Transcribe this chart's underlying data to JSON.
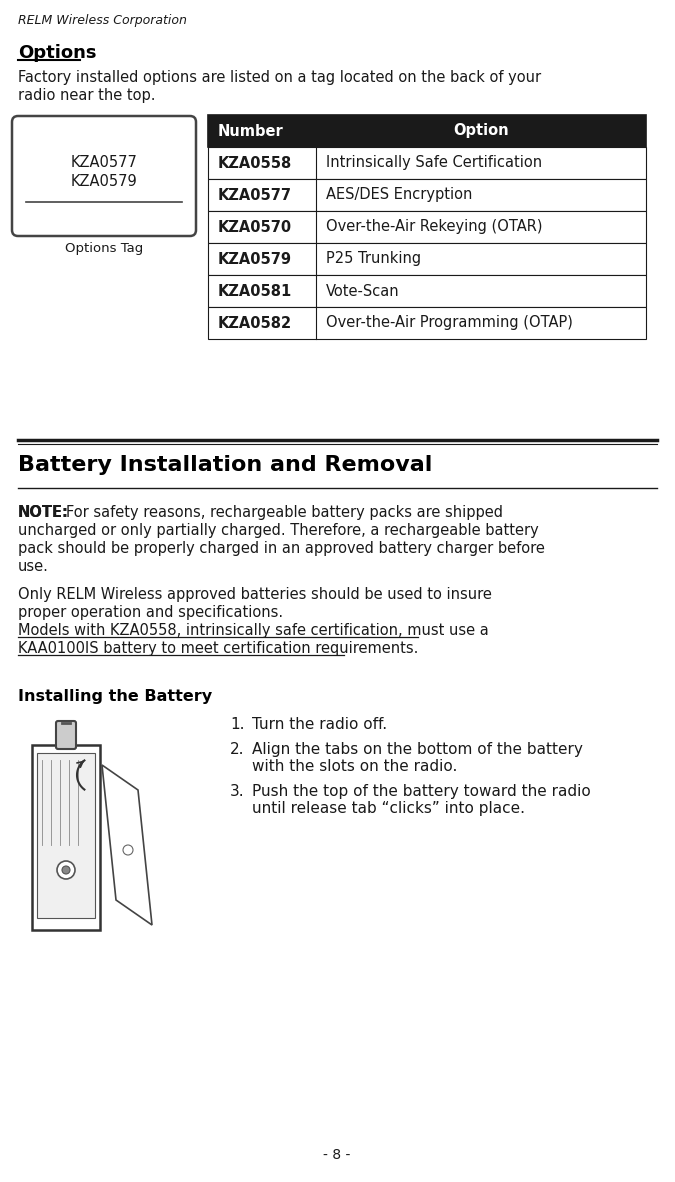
{
  "header_text": "RELM Wireless Corporation",
  "page_number": "- 8 -",
  "section1_title": "Options",
  "section1_intro": "Factory installed options are listed on a tag located on the back of your radio near the top.",
  "table_header": [
    "Number",
    "Option"
  ],
  "table_rows": [
    [
      "KZA0558",
      "Intrinsically Safe Certification"
    ],
    [
      "KZA0577",
      "AES/DES Encryption"
    ],
    [
      "KZA0570",
      "Over-the-Air Rekeying (OTAR)"
    ],
    [
      "KZA0579",
      "P25 Trunking"
    ],
    [
      "KZA0581",
      "Vote-Scan"
    ],
    [
      "KZA0582",
      "Over-the-Air Programming (OTAP)"
    ]
  ],
  "tag_lines": [
    "KZA0577",
    "KZA0579"
  ],
  "tag_label": "Options Tag",
  "section2_title": "Battery Installation and Removal",
  "note_label": "NOTE:",
  "note_body": "For safety reasons, rechargeable battery packs are shipped uncharged or only partially charged. Therefore, a rechargeable battery pack should be properly charged in an approved battery charger before use.",
  "para2_text": "Only RELM Wireless approved batteries should be used to insure proper operation and specifications.",
  "para2_underline": "Models with KZA0558, intrinsically safe certification, must use a KAA0100IS battery to meet certification requirements.",
  "section3_title": "Installing the Battery",
  "install_steps": [
    "Turn the radio off.",
    "Align the tabs on the bottom of the battery with the slots on the radio.",
    "Push the top of the battery toward the radio until release tab “clicks” into place."
  ],
  "bg_color": "#ffffff",
  "table_header_bg": "#1a1a1a",
  "table_header_fg": "#ffffff",
  "table_row_fg": "#1a1a1a",
  "table_border": "#1a1a1a"
}
